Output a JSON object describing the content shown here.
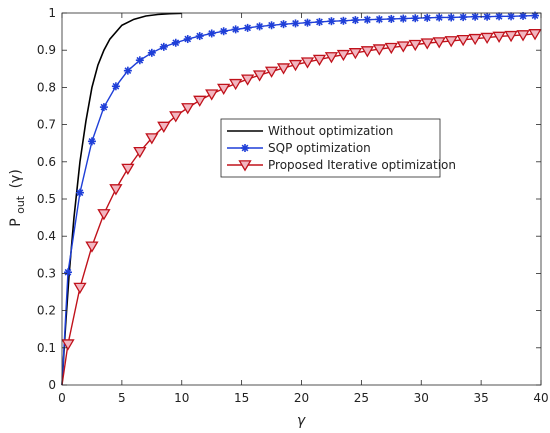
{
  "chart_data": {
    "type": "line",
    "xlabel": "γ",
    "ylabel": {
      "main": "P",
      "subscript": "out",
      "suffix": "(γ)"
    },
    "xlim": [
      0,
      40
    ],
    "ylim": [
      0,
      1
    ],
    "xticks": [
      0,
      5,
      10,
      15,
      20,
      25,
      30,
      35,
      40
    ],
    "yticks": [
      0,
      0.1,
      0.2,
      0.3,
      0.4,
      0.5,
      0.6,
      0.7,
      0.8,
      0.9,
      1
    ],
    "grid": false,
    "legend_position": "center-right",
    "series": [
      {
        "name": "Without optimization",
        "color": "#000000",
        "marker": "none",
        "x": [
          0,
          0.3,
          0.6,
          1,
          1.5,
          2,
          2.5,
          3,
          3.5,
          4,
          5,
          6,
          7,
          8,
          9,
          10
        ],
        "y": [
          0,
          0.16,
          0.3,
          0.45,
          0.6,
          0.71,
          0.8,
          0.86,
          0.9,
          0.93,
          0.967,
          0.983,
          0.992,
          0.996,
          0.998,
          0.999
        ]
      },
      {
        "name": "SQP optimization",
        "color": "#1f3fd8",
        "marker": "asterisk",
        "x": [
          0,
          0.5,
          1.5,
          2.5,
          3.5,
          4.5,
          5.5,
          6.5,
          7.5,
          8.5,
          9.5,
          10.5,
          11.5,
          12.5,
          13.5,
          14.5,
          15.5,
          16.5,
          17.5,
          18.5,
          19.5,
          20.5,
          21.5,
          22.5,
          23.5,
          24.5,
          25.5,
          26.5,
          27.5,
          28.5,
          29.5,
          30.5,
          31.5,
          32.5,
          33.5,
          34.5,
          35.5,
          36.5,
          37.5,
          38.5,
          39.5
        ],
        "y": [
          0,
          0.303,
          0.517,
          0.655,
          0.747,
          0.803,
          0.845,
          0.873,
          0.893,
          0.909,
          0.92,
          0.93,
          0.938,
          0.945,
          0.951,
          0.956,
          0.96,
          0.964,
          0.967,
          0.97,
          0.972,
          0.974,
          0.976,
          0.978,
          0.979,
          0.981,
          0.982,
          0.983,
          0.984,
          0.985,
          0.986,
          0.987,
          0.988,
          0.988,
          0.989,
          0.99,
          0.99,
          0.991,
          0.991,
          0.992,
          0.993
        ]
      },
      {
        "name": "Proposed Iterative optimization",
        "color": "#c0121b",
        "marker": "triangle-down",
        "x": [
          0,
          0.5,
          1.5,
          2.5,
          3.5,
          4.5,
          5.5,
          6.5,
          7.5,
          8.5,
          9.5,
          10.5,
          11.5,
          12.5,
          13.5,
          14.5,
          15.5,
          16.5,
          17.5,
          18.5,
          19.5,
          20.5,
          21.5,
          22.5,
          23.5,
          24.5,
          25.5,
          26.5,
          27.5,
          28.5,
          29.5,
          30.5,
          31.5,
          32.5,
          33.5,
          34.5,
          35.5,
          36.5,
          37.5,
          38.5,
          39.5
        ],
        "y": [
          0,
          0.11,
          0.262,
          0.373,
          0.46,
          0.527,
          0.582,
          0.627,
          0.664,
          0.695,
          0.723,
          0.745,
          0.765,
          0.782,
          0.797,
          0.81,
          0.822,
          0.833,
          0.843,
          0.852,
          0.861,
          0.868,
          0.875,
          0.882,
          0.888,
          0.893,
          0.898,
          0.903,
          0.907,
          0.911,
          0.915,
          0.919,
          0.922,
          0.925,
          0.928,
          0.931,
          0.934,
          0.937,
          0.939,
          0.941,
          0.944
        ]
      }
    ]
  }
}
